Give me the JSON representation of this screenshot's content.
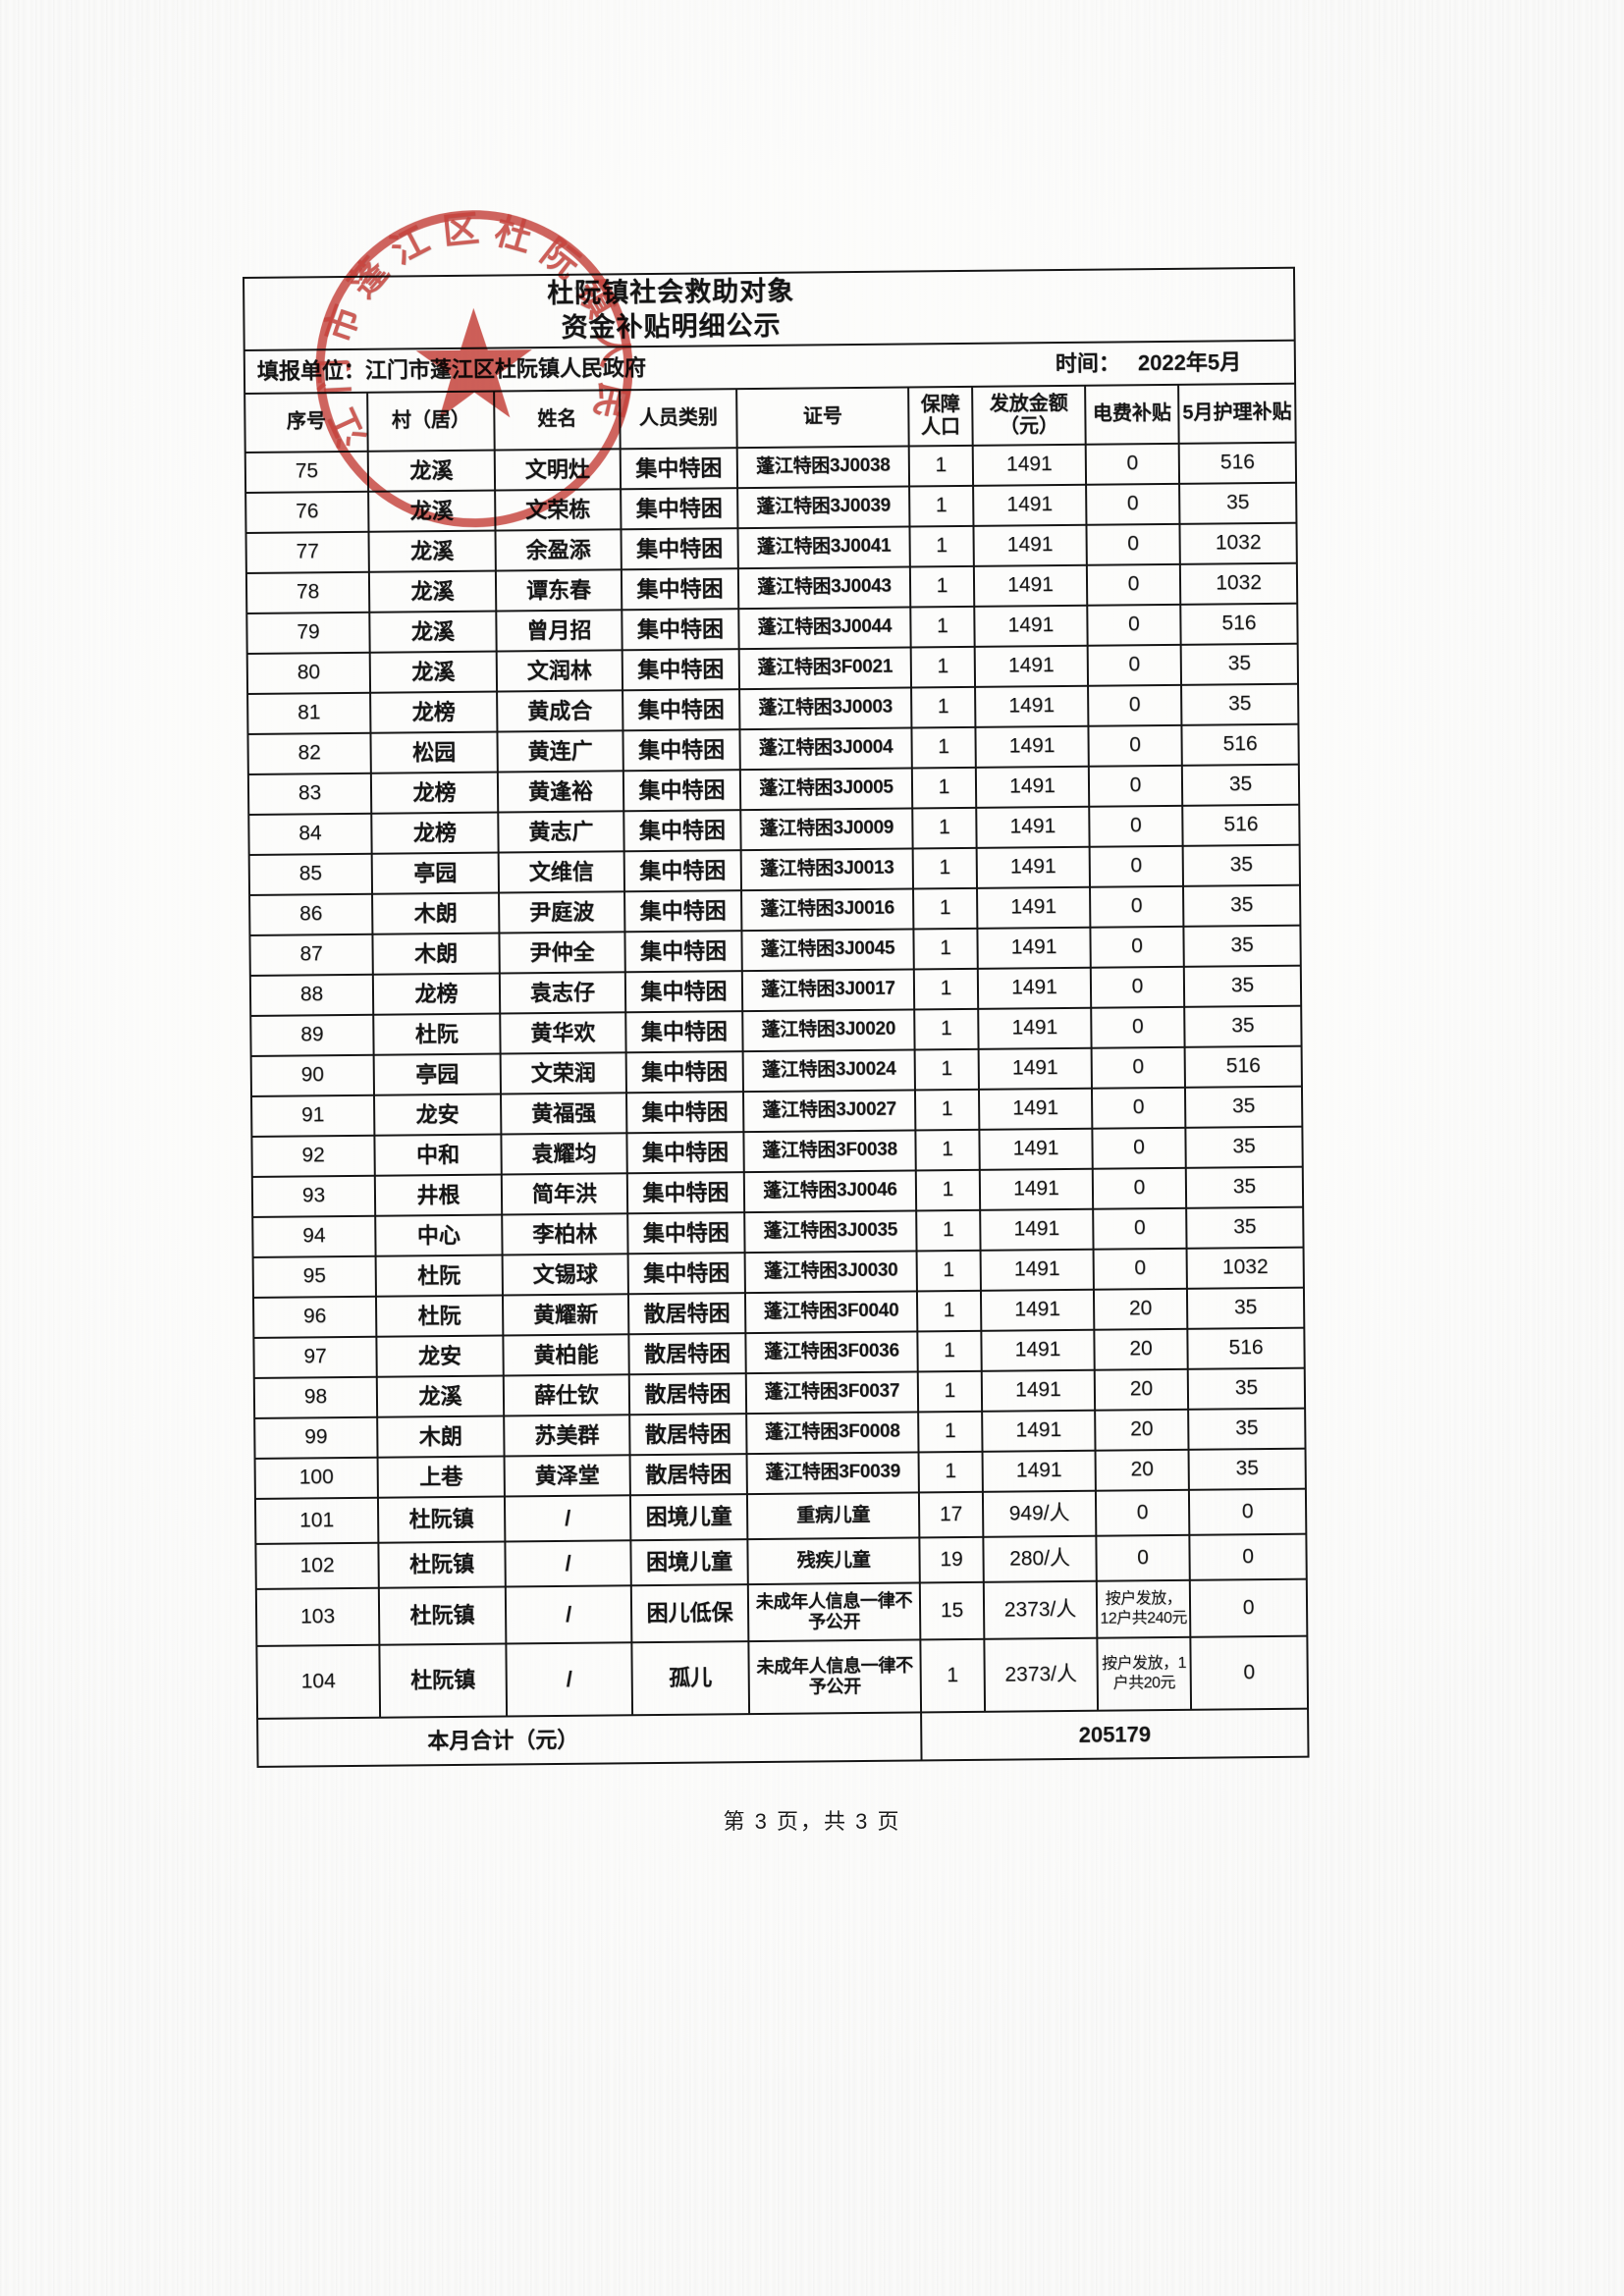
{
  "title": {
    "line1": "杜阮镇社会救助对象",
    "line2": "资金补贴明细公示"
  },
  "meta": {
    "reporting_unit": "填报单位：江门市蓬江区杜阮镇人民政府",
    "time_label": "时间：",
    "time_value": "2022年5月"
  },
  "stamp": {
    "arc_text": "江门市蓬江区杜阮镇人民政府",
    "ink_color": "#c0312a"
  },
  "table": {
    "headers": [
      "序号",
      "村（居）",
      "姓名",
      "人员类别",
      "证号",
      "保障人口",
      "发放金额（元）",
      "电费补贴",
      "5月护理补贴"
    ],
    "rows": [
      [
        "75",
        "龙溪",
        "文明灶",
        "集中特困",
        "蓬江特困3J0038",
        "1",
        "1491",
        "0",
        "516"
      ],
      [
        "76",
        "龙溪",
        "文荣栋",
        "集中特困",
        "蓬江特困3J0039",
        "1",
        "1491",
        "0",
        "35"
      ],
      [
        "77",
        "龙溪",
        "余盈添",
        "集中特困",
        "蓬江特困3J0041",
        "1",
        "1491",
        "0",
        "1032"
      ],
      [
        "78",
        "龙溪",
        "谭东春",
        "集中特困",
        "蓬江特困3J0043",
        "1",
        "1491",
        "0",
        "1032"
      ],
      [
        "79",
        "龙溪",
        "曾月招",
        "集中特困",
        "蓬江特困3J0044",
        "1",
        "1491",
        "0",
        "516"
      ],
      [
        "80",
        "龙溪",
        "文润林",
        "集中特困",
        "蓬江特困3F0021",
        "1",
        "1491",
        "0",
        "35"
      ],
      [
        "81",
        "龙榜",
        "黄成合",
        "集中特困",
        "蓬江特困3J0003",
        "1",
        "1491",
        "0",
        "35"
      ],
      [
        "82",
        "松园",
        "黄连广",
        "集中特困",
        "蓬江特困3J0004",
        "1",
        "1491",
        "0",
        "516"
      ],
      [
        "83",
        "龙榜",
        "黄逢裕",
        "集中特困",
        "蓬江特困3J0005",
        "1",
        "1491",
        "0",
        "35"
      ],
      [
        "84",
        "龙榜",
        "黄志广",
        "集中特困",
        "蓬江特困3J0009",
        "1",
        "1491",
        "0",
        "516"
      ],
      [
        "85",
        "亭园",
        "文维信",
        "集中特困",
        "蓬江特困3J0013",
        "1",
        "1491",
        "0",
        "35"
      ],
      [
        "86",
        "木朗",
        "尹庭波",
        "集中特困",
        "蓬江特困3J0016",
        "1",
        "1491",
        "0",
        "35"
      ],
      [
        "87",
        "木朗",
        "尹仲全",
        "集中特困",
        "蓬江特困3J0045",
        "1",
        "1491",
        "0",
        "35"
      ],
      [
        "88",
        "龙榜",
        "袁志仔",
        "集中特困",
        "蓬江特困3J0017",
        "1",
        "1491",
        "0",
        "35"
      ],
      [
        "89",
        "杜阮",
        "黄华欢",
        "集中特困",
        "蓬江特困3J0020",
        "1",
        "1491",
        "0",
        "35"
      ],
      [
        "90",
        "亭园",
        "文荣润",
        "集中特困",
        "蓬江特困3J0024",
        "1",
        "1491",
        "0",
        "516"
      ],
      [
        "91",
        "龙安",
        "黄福强",
        "集中特困",
        "蓬江特困3J0027",
        "1",
        "1491",
        "0",
        "35"
      ],
      [
        "92",
        "中和",
        "袁耀均",
        "集中特困",
        "蓬江特困3F0038",
        "1",
        "1491",
        "0",
        "35"
      ],
      [
        "93",
        "井根",
        "简年洪",
        "集中特困",
        "蓬江特困3J0046",
        "1",
        "1491",
        "0",
        "35"
      ],
      [
        "94",
        "中心",
        "李柏林",
        "集中特困",
        "蓬江特困3J0035",
        "1",
        "1491",
        "0",
        "35"
      ],
      [
        "95",
        "杜阮",
        "文锡球",
        "集中特困",
        "蓬江特困3J0030",
        "1",
        "1491",
        "0",
        "1032"
      ],
      [
        "96",
        "杜阮",
        "黄耀新",
        "散居特困",
        "蓬江特困3F0040",
        "1",
        "1491",
        "20",
        "35"
      ],
      [
        "97",
        "龙安",
        "黄柏能",
        "散居特困",
        "蓬江特困3F0036",
        "1",
        "1491",
        "20",
        "516"
      ],
      [
        "98",
        "龙溪",
        "薛仕钦",
        "散居特困",
        "蓬江特困3F0037",
        "1",
        "1491",
        "20",
        "35"
      ],
      [
        "99",
        "木朗",
        "苏美群",
        "散居特困",
        "蓬江特困3F0008",
        "1",
        "1491",
        "20",
        "35"
      ],
      [
        "100",
        "上巷",
        "黄泽堂",
        "散居特困",
        "蓬江特困3F0039",
        "1",
        "1491",
        "20",
        "35"
      ],
      [
        "101",
        "杜阮镇",
        "/",
        "困境儿童",
        "重病儿童",
        "17",
        "949/人",
        "0",
        "0"
      ],
      [
        "102",
        "杜阮镇",
        "/",
        "困境儿童",
        "残疾儿童",
        "19",
        "280/人",
        "0",
        "0"
      ],
      [
        "103",
        "杜阮镇",
        "/",
        "困儿低保",
        "未成年人信息一律不予公开",
        "15",
        "2373/人",
        "按户发放，12户共240元",
        "0"
      ],
      [
        "104",
        "杜阮镇",
        "/",
        "孤儿",
        "未成年人信息一律不予公开",
        "1",
        "2373/人",
        "按户发放，1户共20元",
        "0"
      ]
    ],
    "total_label": "本月合计（元）",
    "total_value": "205179"
  },
  "footer": {
    "page_indicator": "第 3 页，共 3 页"
  }
}
